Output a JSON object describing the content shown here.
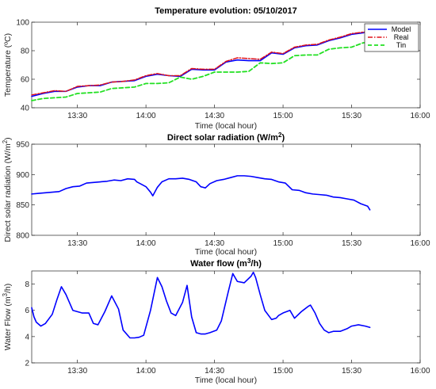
{
  "chart_data": [
    {
      "id": "temperature",
      "type": "line",
      "title": "Temperature evolution: 05/10/2017",
      "xlabel": "Time (local hour)",
      "ylabel": "Temperature (ºC)",
      "x_unit": "minutes of day",
      "xlim": [
        790,
        960
      ],
      "ylim": [
        40,
        100
      ],
      "xticks": [
        {
          "v": 810,
          "label": "13:30"
        },
        {
          "v": 840,
          "label": "14:00"
        },
        {
          "v": 870,
          "label": "14:30"
        },
        {
          "v": 900,
          "label": "15:00"
        },
        {
          "v": 930,
          "label": "15:30"
        },
        {
          "v": 960,
          "label": "16:00"
        }
      ],
      "yticks": [
        {
          "v": 40,
          "label": "40"
        },
        {
          "v": 60,
          "label": "60"
        },
        {
          "v": 80,
          "label": "80"
        },
        {
          "v": 100,
          "label": "100"
        }
      ],
      "legend": {
        "position": "top-right"
      },
      "series": [
        {
          "name": "Model",
          "color": "#0000ff",
          "dash": "",
          "width": 1.6,
          "x": [
            790,
            795,
            800,
            805,
            810,
            815,
            820,
            825,
            830,
            835,
            840,
            845,
            850,
            855,
            860,
            865,
            870,
            875,
            880,
            885,
            890,
            895,
            900,
            905,
            910,
            915,
            920,
            925,
            930,
            935,
            938
          ],
          "y": [
            48,
            50,
            51.5,
            51.5,
            54.5,
            55.5,
            55.5,
            58,
            58.5,
            59,
            62,
            63.5,
            62.5,
            62,
            67,
            66.5,
            66.5,
            72,
            73.5,
            73,
            73,
            78.5,
            77.5,
            82,
            83.5,
            84,
            87,
            89,
            91.5,
            92.5,
            94
          ]
        },
        {
          "name": "Real",
          "color": "#e0141a",
          "dash": "6,2,1.5,2",
          "width": 1.5,
          "x": [
            790,
            795,
            800,
            805,
            810,
            815,
            820,
            825,
            830,
            835,
            840,
            845,
            850,
            855,
            860,
            865,
            870,
            875,
            880,
            885,
            890,
            895,
            900,
            905,
            910,
            915,
            920,
            925,
            930,
            935,
            938
          ],
          "y": [
            49,
            50.5,
            52,
            51.5,
            55,
            55.5,
            56,
            58,
            58.5,
            59.5,
            62.5,
            64,
            62.5,
            62.5,
            67.5,
            67,
            67,
            72.5,
            75,
            74.5,
            74,
            79,
            78,
            82.5,
            84,
            84.5,
            87.5,
            89.5,
            92,
            93,
            93.5
          ]
        },
        {
          "name": "Tin",
          "color": "#22e022",
          "dash": "5,3",
          "width": 1.8,
          "x": [
            790,
            795,
            800,
            805,
            810,
            815,
            820,
            825,
            830,
            835,
            840,
            845,
            850,
            855,
            860,
            865,
            870,
            875,
            880,
            885,
            890,
            895,
            900,
            905,
            910,
            915,
            920,
            925,
            930,
            935,
            938
          ],
          "y": [
            45,
            46.5,
            47,
            47.5,
            50,
            50.5,
            51,
            53.5,
            54,
            54.5,
            57,
            57,
            57.5,
            61.5,
            60,
            62,
            65,
            65,
            65,
            65.5,
            71.5,
            71,
            71.5,
            76.5,
            77,
            77,
            81,
            82,
            82.5,
            85.5,
            86
          ]
        }
      ]
    },
    {
      "id": "radiation",
      "type": "line",
      "title": "Direct solar radiation (W/m²)",
      "xlabel": "Time (local hour)",
      "ylabel": "Direct solar radiation (W/m²)",
      "x_unit": "minutes of day",
      "xlim": [
        790,
        960
      ],
      "ylim": [
        800,
        950
      ],
      "xticks": [
        {
          "v": 810,
          "label": "13:30"
        },
        {
          "v": 840,
          "label": "14:00"
        },
        {
          "v": 870,
          "label": "14:30"
        },
        {
          "v": 900,
          "label": "15:00"
        },
        {
          "v": 930,
          "label": "15:30"
        },
        {
          "v": 960,
          "label": "16:00"
        }
      ],
      "yticks": [
        {
          "v": 800,
          "label": "800"
        },
        {
          "v": 850,
          "label": "850"
        },
        {
          "v": 900,
          "label": "900"
        },
        {
          "v": 950,
          "label": "950"
        }
      ],
      "series": [
        {
          "name": "",
          "color": "#0000ff",
          "dash": "",
          "width": 1.6,
          "x": [
            790,
            793,
            796,
            799,
            802,
            805,
            808,
            811,
            814,
            817,
            820,
            823,
            826,
            829,
            832,
            835,
            836,
            838,
            840,
            842,
            843,
            845,
            847,
            850,
            853,
            856,
            859,
            862,
            864,
            866,
            868,
            871,
            874,
            877,
            880,
            883,
            886,
            889,
            892,
            895,
            898,
            901,
            904,
            907,
            910,
            913,
            916,
            919,
            922,
            925,
            928,
            931,
            934,
            937,
            938
          ],
          "y": [
            868,
            869,
            870,
            871,
            872,
            877,
            880,
            881,
            886,
            887,
            888,
            889,
            891,
            890,
            893,
            892,
            888,
            884,
            880,
            871,
            865,
            879,
            888,
            893,
            893,
            894,
            892,
            888,
            880,
            878,
            885,
            890,
            892,
            895,
            898,
            898,
            897,
            895,
            893,
            892,
            888,
            886,
            875,
            874,
            870,
            868,
            867,
            866,
            863,
            862,
            860,
            858,
            852,
            848,
            842
          ]
        }
      ]
    },
    {
      "id": "waterflow",
      "type": "line",
      "title": "Water flow (m³/h)",
      "xlabel": "Time (local hour)",
      "ylabel": "Water Flow (m³/h)",
      "x_unit": "minutes of day",
      "xlim": [
        790,
        960
      ],
      "ylim": [
        2,
        9
      ],
      "xticks": [
        {
          "v": 810,
          "label": "13:30"
        },
        {
          "v": 840,
          "label": "14:00"
        },
        {
          "v": 870,
          "label": "14:30"
        },
        {
          "v": 900,
          "label": "15:00"
        },
        {
          "v": 930,
          "label": "15:30"
        },
        {
          "v": 960,
          "label": "16:00"
        }
      ],
      "yticks": [
        {
          "v": 2,
          "label": "2"
        },
        {
          "v": 4,
          "label": "4"
        },
        {
          "v": 6,
          "label": "6"
        },
        {
          "v": 8,
          "label": "8"
        }
      ],
      "series": [
        {
          "name": "",
          "color": "#0000ff",
          "dash": "",
          "width": 1.6,
          "x": [
            790,
            791,
            792,
            794,
            796,
            799,
            801,
            803,
            805,
            808,
            812,
            815,
            817,
            819,
            822,
            825,
            828,
            830,
            833,
            835,
            837,
            839,
            842,
            845,
            847,
            849,
            851,
            853,
            856,
            858,
            860,
            862,
            864,
            866,
            868,
            871,
            873,
            876,
            878,
            880,
            883,
            886,
            887,
            888,
            890,
            892,
            895,
            897,
            898,
            900,
            903,
            905,
            908,
            911,
            912,
            914,
            916,
            918,
            920,
            922,
            925,
            928,
            930,
            933,
            936,
            938
          ],
          "y": [
            6.2,
            5.5,
            5.1,
            4.8,
            5.0,
            5.7,
            6.8,
            7.8,
            7.2,
            6.0,
            5.8,
            5.8,
            5.0,
            4.9,
            5.9,
            7.1,
            6.1,
            4.5,
            3.9,
            3.9,
            3.95,
            4.1,
            6.0,
            8.5,
            7.8,
            6.7,
            5.8,
            5.6,
            6.6,
            7.9,
            5.5,
            4.3,
            4.2,
            4.2,
            4.3,
            4.5,
            5.2,
            7.4,
            8.8,
            8.2,
            8.1,
            8.6,
            8.9,
            8.5,
            7.2,
            6.0,
            5.3,
            5.4,
            5.6,
            5.8,
            6.0,
            5.4,
            5.9,
            6.3,
            6.4,
            5.8,
            5.0,
            4.5,
            4.3,
            4.4,
            4.4,
            4.6,
            4.8,
            4.9,
            4.8,
            4.7
          ]
        }
      ]
    }
  ]
}
